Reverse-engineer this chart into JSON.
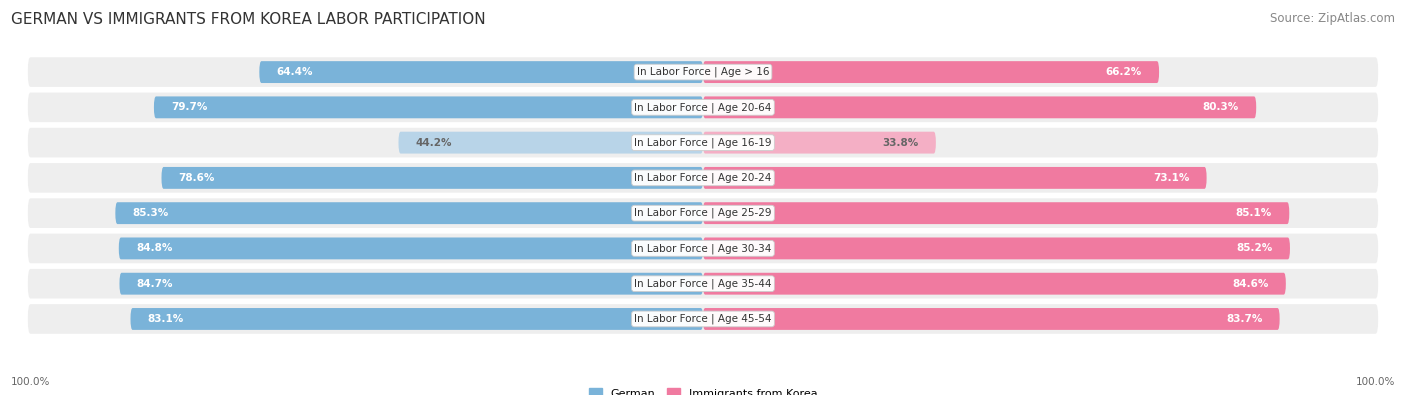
{
  "title": "GERMAN VS IMMIGRANTS FROM KOREA LABOR PARTICIPATION",
  "source": "Source: ZipAtlas.com",
  "categories": [
    "In Labor Force | Age > 16",
    "In Labor Force | Age 20-64",
    "In Labor Force | Age 16-19",
    "In Labor Force | Age 20-24",
    "In Labor Force | Age 25-29",
    "In Labor Force | Age 30-34",
    "In Labor Force | Age 35-44",
    "In Labor Force | Age 45-54"
  ],
  "german_values": [
    64.4,
    79.7,
    44.2,
    78.6,
    85.3,
    84.8,
    84.7,
    83.1
  ],
  "korea_values": [
    66.2,
    80.3,
    33.8,
    73.1,
    85.1,
    85.2,
    84.6,
    83.7
  ],
  "german_color": "#7ab3d9",
  "korea_color": "#f07aa0",
  "german_color_light": "#b8d4e8",
  "korea_color_light": "#f4afc5",
  "row_bg": "#eeeeee",
  "bar_height": 0.62,
  "max_val": 100.0,
  "legend_german": "German",
  "legend_korea": "Immigrants from Korea",
  "title_fontsize": 11,
  "source_fontsize": 8.5,
  "cat_fontsize": 7.5,
  "value_fontsize": 7.5,
  "axis_label_left": "100.0%",
  "axis_label_right": "100.0%",
  "value_color_white": "white",
  "value_color_dark": "#666666"
}
